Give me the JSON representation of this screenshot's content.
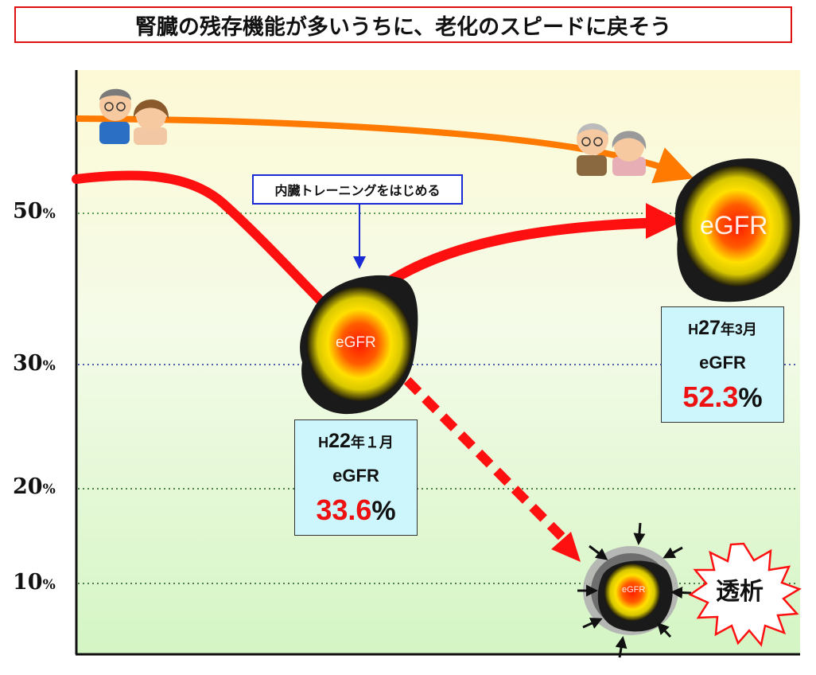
{
  "title": "腎臓の残存機能が多いうちに、老化のスピードに戻そう",
  "y_axis": {
    "labels": [
      {
        "num": "50",
        "unit": "%"
      },
      {
        "num": "30",
        "unit": "%"
      },
      {
        "num": "20",
        "unit": "%"
      },
      {
        "num": "10",
        "unit": "%"
      }
    ]
  },
  "callout": "内臓トレーニングをはじめる",
  "points": [
    {
      "date_era": "H",
      "date_year": "22",
      "date_rest": "年１月",
      "label": "eGFR",
      "value": "33.6",
      "unit": "%"
    },
    {
      "date_era": "H",
      "date_year": "27",
      "date_rest": "年3月",
      "label": "eGFR",
      "value": "52.3",
      "unit": "%"
    }
  ],
  "kidney_text": "eGFR",
  "dialysis_label": "透析",
  "colors": {
    "title_border": "#e01010",
    "callout_border": "#1a2bd6",
    "aging_curve": "#ff7a00",
    "kidney_curve": "#ff1010",
    "value_text": "#ee1111",
    "info_bg": "#ccf6fb"
  }
}
